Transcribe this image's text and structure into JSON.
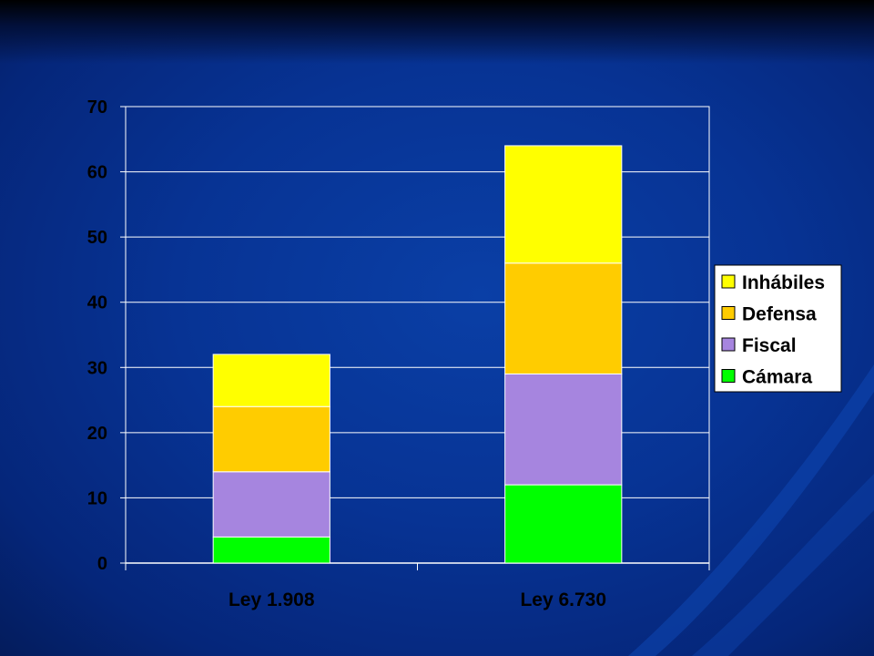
{
  "chart_data": {
    "type": "bar",
    "stacked": true,
    "categories": [
      "Ley 1.908",
      "Ley 6.730"
    ],
    "series": [
      {
        "name": "Cámara",
        "values": [
          4,
          12
        ],
        "color": "#00ff00"
      },
      {
        "name": "Fiscal",
        "values": [
          10,
          17
        ],
        "color": "#a685df"
      },
      {
        "name": "Defensa",
        "values": [
          10,
          17
        ],
        "color": "#ffcc00"
      },
      {
        "name": "Inhábiles",
        "values": [
          8,
          18
        ],
        "color": "#ffff00"
      }
    ],
    "title": "",
    "xlabel": "",
    "ylabel": "",
    "ylim": [
      0,
      70
    ],
    "yticks": [
      0,
      10,
      20,
      30,
      40,
      50,
      60,
      70
    ],
    "grid": true,
    "legend": "right",
    "legend_order": [
      "Inhábiles",
      "Defensa",
      "Fiscal",
      "Cámara"
    ]
  },
  "colors": {
    "background": "#063090",
    "axis_text": "#000000",
    "gridline": "#ffffff",
    "bar_border": "#ffffff"
  }
}
